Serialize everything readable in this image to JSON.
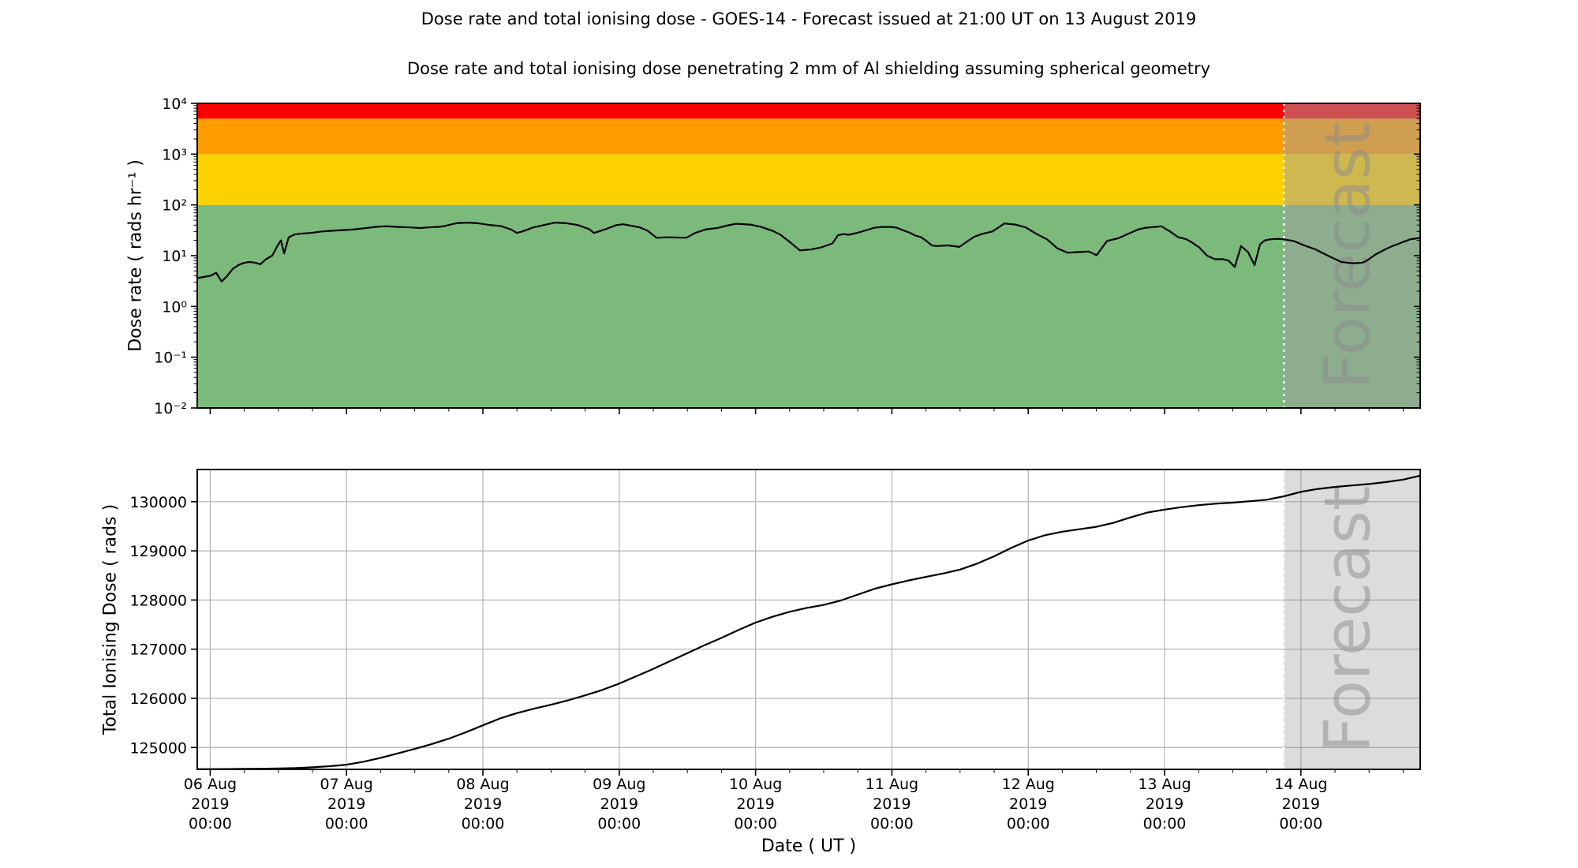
{
  "figure": {
    "title": "Dose rate and total ionising dose - GOES-14 - Forecast issued at 21:00 UT on 13 August 2019",
    "subtitle": "Dose rate and total ionising dose penetrating 2 mm of Al shielding assuming spherical geometry"
  },
  "watermark": {
    "label": "Forecast"
  },
  "colors": {
    "band_green": "#7cba7c",
    "band_yellow": "#ffd100",
    "band_orange": "#ff9d00",
    "band_red": "#ff0000",
    "forecast_overlay_top": "rgba(160,160,160,0.5)",
    "forecast_overlay_bottom": "rgba(128,128,128,0.28)",
    "forecast_text": "#8c8c8c",
    "grid": "#b3b3b3",
    "axis": "#000000",
    "line": "#000000",
    "forecast_divider": "#ffffff"
  },
  "axes": {
    "x": {
      "label": "Date ( UT )",
      "year_line": "2019",
      "time_line": "00:00",
      "day_labels": [
        "06 Aug",
        "07 Aug",
        "08 Aug",
        "09 Aug",
        "10 Aug",
        "11 Aug",
        "12 Aug",
        "13 Aug",
        "14 Aug"
      ],
      "domain_days_from_06aug": [
        -0.095,
        8.875
      ],
      "minor_tick_interval_days": 0.25
    },
    "top_y": {
      "label": "Dose rate ( rads hr⁻¹ )",
      "scale": "log",
      "tick_labels": [
        "10⁴",
        "10³",
        "10²",
        "10¹",
        "10⁰",
        "10⁻¹",
        "10⁻²"
      ],
      "tick_values": [
        10000,
        1000,
        100,
        10,
        1,
        0.1,
        0.01
      ],
      "ylim": [
        0.01,
        10000
      ]
    },
    "bottom_y": {
      "label": "Total Ionising Dose ( rads )",
      "scale": "linear",
      "tick_labels": [
        "125000",
        "126000",
        "127000",
        "128000",
        "129000",
        "130000"
      ],
      "tick_values": [
        125000,
        126000,
        127000,
        128000,
        129000,
        130000
      ],
      "ylim": [
        124555,
        130655
      ]
    }
  },
  "forecast": {
    "start_day_from_06aug": 7.875,
    "start_label": "13 Aug 2019 21:00 UT",
    "end_label": "14 Aug 2019 21:00 UT"
  },
  "chart_data": [
    {
      "type": "line",
      "panel": "top",
      "title": "Dose rate",
      "ylabel": "Dose rate ( rads hr⁻¹ )",
      "yscale": "log",
      "ylim": [
        0.01,
        10000
      ],
      "x_unit": "days since 06 Aug 2019 00:00 UT",
      "xlim": [
        -0.095,
        8.875
      ],
      "grid": false,
      "threshold_bands": [
        {
          "name": "green",
          "range": [
            0.01,
            100
          ],
          "color": "#7cba7c"
        },
        {
          "name": "yellow",
          "range": [
            100,
            1000
          ],
          "color": "#ffd100"
        },
        {
          "name": "orange",
          "range": [
            1000,
            5000
          ],
          "color": "#ff9d00"
        },
        {
          "name": "red",
          "range": [
            5000,
            10000
          ],
          "color": "#ff0000"
        }
      ],
      "series": [
        {
          "name": "dose_rate_rads_per_hr",
          "points": [
            [
              -0.095,
              3.6
            ],
            [
              -0.05,
              3.8
            ],
            [
              0,
              4.0
            ],
            [
              0.044,
              4.6
            ],
            [
              0.084,
              3.1
            ],
            [
              0.125,
              4.0
            ],
            [
              0.166,
              5.5
            ],
            [
              0.206,
              6.5
            ],
            [
              0.247,
              7.2
            ],
            [
              0.287,
              7.5
            ],
            [
              0.328,
              7.3
            ],
            [
              0.368,
              6.8
            ],
            [
              0.409,
              8.5
            ],
            [
              0.455,
              10.0
            ],
            [
              0.495,
              16.0
            ],
            [
              0.519,
              20.0
            ],
            [
              0.542,
              11.0
            ],
            [
              0.576,
              23.0
            ],
            [
              0.617,
              26.0
            ],
            [
              0.657,
              27.0
            ],
            [
              0.738,
              28.0
            ],
            [
              0.819,
              30.0
            ],
            [
              0.9,
              31.0
            ],
            [
              0.981,
              32.0
            ],
            [
              1.062,
              33.0
            ],
            [
              1.143,
              35.0
            ],
            [
              1.224,
              37.0
            ],
            [
              1.294,
              38.0
            ],
            [
              1.352,
              37.0
            ],
            [
              1.41,
              36.5
            ],
            [
              1.468,
              36.0
            ],
            [
              1.537,
              35.0
            ],
            [
              1.601,
              36.0
            ],
            [
              1.682,
              37.0
            ],
            [
              1.722,
              38.6
            ],
            [
              1.803,
              43.6
            ],
            [
              1.884,
              44.8
            ],
            [
              1.965,
              43.6
            ],
            [
              2.046,
              40.3
            ],
            [
              2.127,
              38.6
            ],
            [
              2.208,
              32.7
            ],
            [
              2.249,
              28.0
            ],
            [
              2.289,
              30.0
            ],
            [
              2.37,
              36.0
            ],
            [
              2.451,
              40.3
            ],
            [
              2.532,
              44.8
            ],
            [
              2.613,
              43.6
            ],
            [
              2.694,
              40.3
            ],
            [
              2.775,
              33.8
            ],
            [
              2.816,
              28.0
            ],
            [
              2.897,
              33.0
            ],
            [
              2.978,
              40.0
            ],
            [
              3.03,
              41.5
            ],
            [
              3.152,
              36.0
            ],
            [
              3.209,
              31.0
            ],
            [
              3.273,
              22.5
            ],
            [
              3.354,
              23.0
            ],
            [
              3.493,
              22.5
            ],
            [
              3.557,
              28.0
            ],
            [
              3.638,
              33.0
            ],
            [
              3.719,
              35.0
            ],
            [
              3.8,
              39.7
            ],
            [
              3.858,
              42.5
            ],
            [
              3.962,
              41.0
            ],
            [
              4.043,
              36.6
            ],
            [
              4.124,
              31.0
            ],
            [
              4.182,
              25.8
            ],
            [
              4.245,
              19.1
            ],
            [
              4.326,
              12.7
            ],
            [
              4.407,
              13.2
            ],
            [
              4.483,
              14.6
            ],
            [
              4.564,
              17.4
            ],
            [
              4.604,
              25.3
            ],
            [
              4.645,
              26.6
            ],
            [
              4.685,
              25.8
            ],
            [
              4.749,
              28.3
            ],
            [
              4.807,
              31.4
            ],
            [
              4.87,
              35.4
            ],
            [
              4.928,
              36.8
            ],
            [
              4.992,
              36.8
            ],
            [
              5.032,
              35.7
            ],
            [
              5.073,
              32.4
            ],
            [
              5.131,
              28.3
            ],
            [
              5.171,
              24.9
            ],
            [
              5.212,
              23.3
            ],
            [
              5.252,
              19.6
            ],
            [
              5.293,
              15.9
            ],
            [
              5.333,
              15.5
            ],
            [
              5.414,
              15.9
            ],
            [
              5.495,
              14.9
            ],
            [
              5.6,
              23.3
            ],
            [
              5.657,
              26.6
            ],
            [
              5.738,
              30.0
            ],
            [
              5.825,
              43.0
            ],
            [
              5.906,
              41.0
            ],
            [
              5.982,
              36.0
            ],
            [
              6.057,
              27.0
            ],
            [
              6.138,
              21.0
            ],
            [
              6.213,
              14.0
            ],
            [
              6.288,
              11.4
            ],
            [
              6.369,
              11.8
            ],
            [
              6.444,
              12.1
            ],
            [
              6.502,
              10.2
            ],
            [
              6.578,
              19.5
            ],
            [
              6.659,
              22.0
            ],
            [
              6.734,
              27.0
            ],
            [
              6.809,
              33.0
            ],
            [
              6.867,
              35.6
            ],
            [
              6.919,
              36.5
            ],
            [
              6.977,
              37.8
            ],
            [
              7.04,
              30.0
            ],
            [
              7.098,
              23.3
            ],
            [
              7.156,
              21.3
            ],
            [
              7.197,
              18.5
            ],
            [
              7.255,
              14.5
            ],
            [
              7.312,
              10.0
            ],
            [
              7.37,
              8.5
            ],
            [
              7.428,
              8.5
            ],
            [
              7.469,
              8.0
            ],
            [
              7.515,
              6.0
            ],
            [
              7.561,
              15.5
            ],
            [
              7.613,
              11.7
            ],
            [
              7.66,
              6.5
            ],
            [
              7.7,
              16.7
            ],
            [
              7.735,
              20.0
            ],
            [
              7.775,
              21.0
            ],
            [
              7.833,
              21.4
            ],
            [
              7.875,
              21.0
            ],
            [
              7.95,
              19.3
            ],
            [
              8.025,
              15.9
            ],
            [
              8.106,
              13.3
            ],
            [
              8.182,
              10.5
            ],
            [
              8.222,
              9.3
            ],
            [
              8.297,
              7.5
            ],
            [
              8.355,
              7.2
            ],
            [
              8.396,
              7.1
            ],
            [
              8.453,
              7.3
            ],
            [
              8.488,
              8.1
            ],
            [
              8.546,
              10.5
            ],
            [
              8.604,
              12.7
            ],
            [
              8.662,
              15.1
            ],
            [
              8.743,
              18.3
            ],
            [
              8.801,
              21.0
            ],
            [
              8.875,
              22.4
            ]
          ]
        }
      ],
      "forecast_start_day": 7.875
    },
    {
      "type": "line",
      "panel": "bottom",
      "title": "Total ionising dose",
      "ylabel": "Total Ionising Dose ( rads )",
      "yscale": "linear",
      "ylim": [
        124555,
        130655
      ],
      "x_unit": "days since 06 Aug 2019 00:00 UT",
      "xlim": [
        -0.095,
        8.875
      ],
      "grid": true,
      "series": [
        {
          "name": "total_ionising_dose_rads",
          "points": [
            [
              -0.095,
              124560
            ],
            [
              0,
              124560
            ],
            [
              0.125,
              124562
            ],
            [
              0.25,
              124565
            ],
            [
              0.375,
              124568
            ],
            [
              0.5,
              124572
            ],
            [
              0.625,
              124580
            ],
            [
              0.75,
              124597
            ],
            [
              0.875,
              124620
            ],
            [
              1.0,
              124650
            ],
            [
              1.125,
              124710
            ],
            [
              1.25,
              124790
            ],
            [
              1.375,
              124880
            ],
            [
              1.5,
              124970
            ],
            [
              1.625,
              125070
            ],
            [
              1.75,
              125180
            ],
            [
              1.875,
              125310
            ],
            [
              2.0,
              125450
            ],
            [
              2.125,
              125590
            ],
            [
              2.25,
              125700
            ],
            [
              2.375,
              125790
            ],
            [
              2.5,
              125870
            ],
            [
              2.625,
              125960
            ],
            [
              2.75,
              126060
            ],
            [
              2.875,
              126170
            ],
            [
              3.0,
              126300
            ],
            [
              3.125,
              126450
            ],
            [
              3.25,
              126600
            ],
            [
              3.375,
              126760
            ],
            [
              3.5,
              126920
            ],
            [
              3.625,
              127080
            ],
            [
              3.75,
              127230
            ],
            [
              3.875,
              127390
            ],
            [
              4.0,
              127540
            ],
            [
              4.125,
              127660
            ],
            [
              4.25,
              127760
            ],
            [
              4.375,
              127840
            ],
            [
              4.5,
              127900
            ],
            [
              4.625,
              127990
            ],
            [
              4.75,
              128110
            ],
            [
              4.875,
              128230
            ],
            [
              5.0,
              128320
            ],
            [
              5.125,
              128400
            ],
            [
              5.25,
              128470
            ],
            [
              5.375,
              128540
            ],
            [
              5.5,
              128620
            ],
            [
              5.625,
              128740
            ],
            [
              5.75,
              128890
            ],
            [
              5.875,
              129060
            ],
            [
              6.0,
              129210
            ],
            [
              6.125,
              129320
            ],
            [
              6.25,
              129390
            ],
            [
              6.375,
              129440
            ],
            [
              6.5,
              129490
            ],
            [
              6.625,
              129570
            ],
            [
              6.75,
              129680
            ],
            [
              6.875,
              129780
            ],
            [
              7.0,
              129840
            ],
            [
              7.125,
              129890
            ],
            [
              7.25,
              129930
            ],
            [
              7.375,
              129960
            ],
            [
              7.5,
              129980
            ],
            [
              7.625,
              130010
            ],
            [
              7.75,
              130040
            ],
            [
              7.875,
              130110
            ],
            [
              8.0,
              130200
            ],
            [
              8.125,
              130260
            ],
            [
              8.25,
              130300
            ],
            [
              8.375,
              130330
            ],
            [
              8.5,
              130360
            ],
            [
              8.625,
              130400
            ],
            [
              8.75,
              130450
            ],
            [
              8.875,
              130530
            ]
          ]
        }
      ],
      "forecast_start_day": 7.875
    }
  ]
}
